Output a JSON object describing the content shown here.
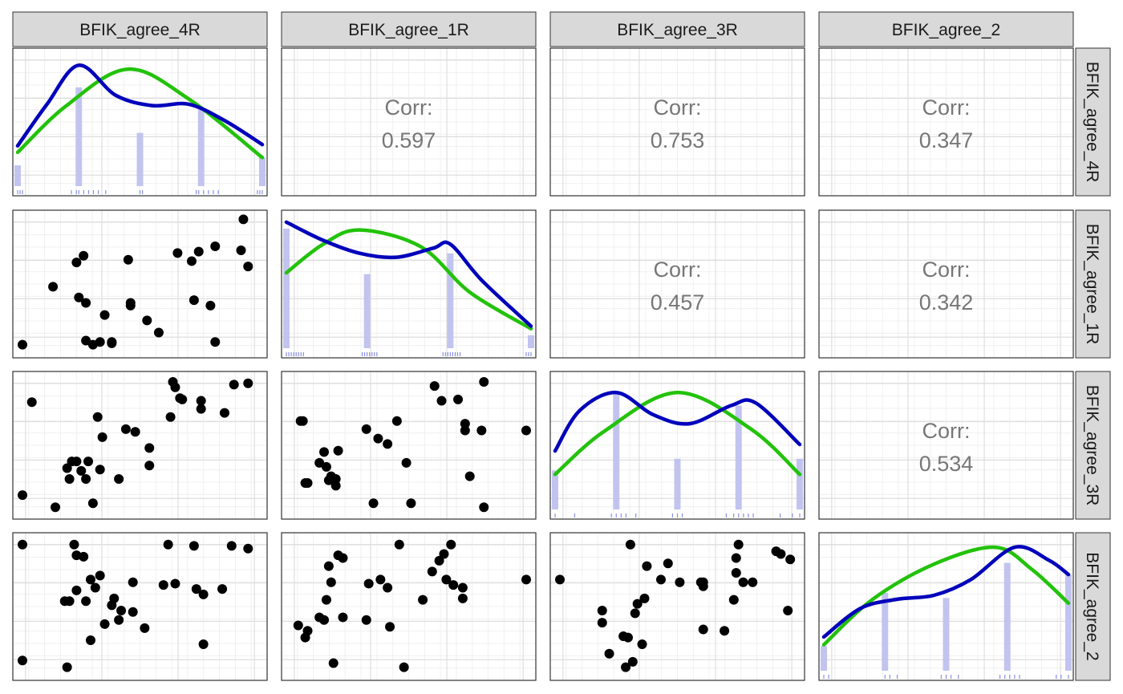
{
  "variables": [
    "BFIK_agree_4R",
    "BFIK_agree_1R",
    "BFIK_agree_3R",
    "BFIK_agree_2"
  ],
  "corr_label": "Corr:",
  "colors": {
    "histogram": "#bfc1ee",
    "density_observed": "#0000bb",
    "density_normal": "#22c20a",
    "rug": "#6f74e0",
    "points": "#000000",
    "strip_fill": "#d9d9d9",
    "corr_text": "#777777"
  },
  "chart_data": {
    "type": "scatterplot_matrix",
    "correlations": [
      {
        "row": "BFIK_agree_4R",
        "col": "BFIK_agree_1R",
        "value": "0.597"
      },
      {
        "row": "BFIK_agree_4R",
        "col": "BFIK_agree_3R",
        "value": "0.753"
      },
      {
        "row": "BFIK_agree_4R",
        "col": "BFIK_agree_2",
        "value": "0.347"
      },
      {
        "row": "BFIK_agree_1R",
        "col": "BFIK_agree_3R",
        "value": "0.457"
      },
      {
        "row": "BFIK_agree_1R",
        "col": "BFIK_agree_2",
        "value": "0.342"
      },
      {
        "row": "BFIK_agree_3R",
        "col": "BFIK_agree_2",
        "value": "0.534"
      }
    ],
    "diagonals": [
      {
        "var": "BFIK_agree_4R",
        "bars": [
          [
            0.0,
            0.16
          ],
          [
            0.25,
            0.76
          ],
          [
            0.5,
            0.41
          ],
          [
            0.75,
            0.59
          ],
          [
            1.0,
            0.22
          ]
        ],
        "density": [
          [
            0.0,
            0.31
          ],
          [
            0.12,
            0.63
          ],
          [
            0.25,
            0.93
          ],
          [
            0.4,
            0.7
          ],
          [
            0.55,
            0.62
          ],
          [
            0.7,
            0.63
          ],
          [
            0.85,
            0.5
          ],
          [
            1.0,
            0.32
          ]
        ],
        "normal": [
          [
            0.0,
            0.26
          ],
          [
            0.2,
            0.62
          ],
          [
            0.45,
            0.9
          ],
          [
            0.7,
            0.67
          ],
          [
            1.0,
            0.22
          ]
        ],
        "rug": [
          0.0,
          0.01,
          0.02,
          0.22,
          0.24,
          0.25,
          0.27,
          0.29,
          0.31,
          0.33,
          0.36,
          0.5,
          0.51,
          0.73,
          0.74,
          0.76,
          0.78,
          0.8,
          0.82,
          0.98,
          0.99,
          1.0
        ]
      },
      {
        "var": "BFIK_agree_1R",
        "bars": [
          [
            0.0,
            0.92
          ],
          [
            0.33,
            0.57
          ],
          [
            0.67,
            0.73
          ],
          [
            1.0,
            0.1
          ]
        ],
        "density": [
          [
            0.0,
            0.97
          ],
          [
            0.15,
            0.83
          ],
          [
            0.3,
            0.73
          ],
          [
            0.45,
            0.7
          ],
          [
            0.6,
            0.77
          ],
          [
            0.67,
            0.8
          ],
          [
            0.8,
            0.52
          ],
          [
            1.0,
            0.17
          ]
        ],
        "normal": [
          [
            0.0,
            0.58
          ],
          [
            0.15,
            0.8
          ],
          [
            0.3,
            0.91
          ],
          [
            0.55,
            0.78
          ],
          [
            0.75,
            0.43
          ],
          [
            1.0,
            0.15
          ]
        ],
        "rug": [
          0.0,
          0.01,
          0.02,
          0.03,
          0.04,
          0.05,
          0.06,
          0.07,
          0.31,
          0.32,
          0.33,
          0.34,
          0.35,
          0.36,
          0.37,
          0.64,
          0.65,
          0.66,
          0.67,
          0.68,
          0.69,
          0.7,
          0.71,
          0.98,
          0.99,
          1.0
        ]
      },
      {
        "var": "BFIK_agree_3R",
        "bars": [
          [
            0.0,
            0.3
          ],
          [
            0.25,
            0.91
          ],
          [
            0.5,
            0.39
          ],
          [
            0.75,
            0.8
          ],
          [
            1.0,
            0.39
          ]
        ],
        "density": [
          [
            0.0,
            0.45
          ],
          [
            0.1,
            0.76
          ],
          [
            0.25,
            0.9
          ],
          [
            0.4,
            0.73
          ],
          [
            0.55,
            0.66
          ],
          [
            0.72,
            0.8
          ],
          [
            0.82,
            0.82
          ],
          [
            1.0,
            0.5
          ]
        ],
        "normal": [
          [
            0.0,
            0.27
          ],
          [
            0.2,
            0.6
          ],
          [
            0.5,
            0.9
          ],
          [
            0.8,
            0.62
          ],
          [
            1.0,
            0.27
          ]
        ],
        "rug": [
          0.0,
          0.08,
          0.23,
          0.25,
          0.27,
          0.29,
          0.33,
          0.48,
          0.5,
          0.52,
          0.7,
          0.73,
          0.75,
          0.77,
          0.79,
          0.81,
          0.92,
          0.97,
          1.0
        ]
      },
      {
        "var": "BFIK_agree_2",
        "bars": [
          [
            0.0,
            0.19
          ],
          [
            0.25,
            0.6
          ],
          [
            0.5,
            0.56
          ],
          [
            0.75,
            0.83
          ],
          [
            1.0,
            0.74
          ]
        ],
        "density": [
          [
            0.0,
            0.26
          ],
          [
            0.15,
            0.48
          ],
          [
            0.3,
            0.55
          ],
          [
            0.45,
            0.58
          ],
          [
            0.6,
            0.7
          ],
          [
            0.78,
            0.95
          ],
          [
            0.92,
            0.85
          ],
          [
            1.0,
            0.74
          ]
        ],
        "normal": [
          [
            0.0,
            0.2
          ],
          [
            0.2,
            0.55
          ],
          [
            0.45,
            0.82
          ],
          [
            0.7,
            0.95
          ],
          [
            0.85,
            0.78
          ],
          [
            1.0,
            0.52
          ]
        ],
        "rug": [
          0.0,
          0.02,
          0.25,
          0.27,
          0.3,
          0.48,
          0.5,
          0.52,
          0.55,
          0.72,
          0.74,
          0.76,
          0.78,
          0.8,
          0.95,
          0.97,
          1.0
        ]
      }
    ],
    "scatter": [
      {
        "row": "BFIK_agree_1R",
        "col": "BFIK_agree_4R",
        "points": [
          [
            0.0,
            0.05
          ],
          [
            0.13,
            0.48
          ],
          [
            0.23,
            0.66
          ],
          [
            0.26,
            0.71
          ],
          [
            0.24,
            0.4
          ],
          [
            0.27,
            0.36
          ],
          [
            0.35,
            0.27
          ],
          [
            0.27,
            0.08
          ],
          [
            0.3,
            0.05
          ],
          [
            0.33,
            0.07
          ],
          [
            0.38,
            0.06
          ],
          [
            0.38,
            0.07
          ],
          [
            0.45,
            0.68
          ],
          [
            0.46,
            0.36
          ],
          [
            0.46,
            0.34
          ],
          [
            0.53,
            0.23
          ],
          [
            0.58,
            0.14
          ],
          [
            0.66,
            0.73
          ],
          [
            0.72,
            0.67
          ],
          [
            0.73,
            0.38
          ],
          [
            0.75,
            0.74
          ],
          [
            0.8,
            0.34
          ],
          [
            0.82,
            0.78
          ],
          [
            0.82,
            0.07
          ],
          [
            0.94,
            0.98
          ],
          [
            0.93,
            0.75
          ],
          [
            0.96,
            0.63
          ]
        ]
      },
      {
        "row": "BFIK_agree_3R",
        "col": "BFIK_agree_4R",
        "points": [
          [
            0.0,
            0.13
          ],
          [
            0.04,
            0.82
          ],
          [
            0.19,
            0.33
          ],
          [
            0.2,
            0.25
          ],
          [
            0.21,
            0.38
          ],
          [
            0.23,
            0.38
          ],
          [
            0.25,
            0.31
          ],
          [
            0.27,
            0.25
          ],
          [
            0.28,
            0.38
          ],
          [
            0.3,
            0.07
          ],
          [
            0.32,
            0.71
          ],
          [
            0.34,
            0.56
          ],
          [
            0.33,
            0.32
          ],
          [
            0.41,
            0.25
          ],
          [
            0.44,
            0.62
          ],
          [
            0.48,
            0.6
          ],
          [
            0.54,
            0.48
          ],
          [
            0.54,
            0.35
          ],
          [
            0.63,
            0.71
          ],
          [
            0.64,
            0.97
          ],
          [
            0.65,
            0.93
          ],
          [
            0.67,
            0.85
          ],
          [
            0.68,
            0.84
          ],
          [
            0.76,
            0.83
          ],
          [
            0.76,
            0.77
          ],
          [
            0.86,
            0.74
          ],
          [
            0.9,
            0.95
          ],
          [
            0.96,
            0.96
          ],
          [
            0.14,
            0.04
          ]
        ]
      },
      {
        "row": "BFIK_agree_3R",
        "col": "BFIK_agree_1R",
        "points": [
          [
            0.05,
            0.68
          ],
          [
            0.04,
            0.68
          ],
          [
            0.14,
            0.45
          ],
          [
            0.12,
            0.37
          ],
          [
            0.15,
            0.34
          ],
          [
            0.17,
            0.27
          ],
          [
            0.2,
            0.46
          ],
          [
            0.19,
            0.25
          ],
          [
            0.19,
            0.2
          ],
          [
            0.16,
            0.24
          ],
          [
            0.07,
            0.22
          ],
          [
            0.06,
            0.22
          ],
          [
            0.32,
            0.62
          ],
          [
            0.37,
            0.55
          ],
          [
            0.41,
            0.51
          ],
          [
            0.45,
            0.68
          ],
          [
            0.49,
            0.37
          ],
          [
            0.35,
            0.07
          ],
          [
            0.51,
            0.07
          ],
          [
            0.61,
            0.94
          ],
          [
            0.64,
            0.83
          ],
          [
            0.71,
            0.84
          ],
          [
            0.74,
            0.66
          ],
          [
            0.74,
            0.61
          ],
          [
            0.76,
            0.27
          ],
          [
            0.81,
            0.61
          ],
          [
            0.82,
            0.04
          ],
          [
            0.82,
            0.97
          ],
          [
            1.0,
            0.61
          ]
        ]
      },
      {
        "row": "BFIK_agree_2",
        "col": "BFIK_agree_4R",
        "points": [
          [
            0.0,
            0.96
          ],
          [
            0.0,
            0.1
          ],
          [
            0.22,
            0.96
          ],
          [
            0.26,
            0.87
          ],
          [
            0.29,
            0.7
          ],
          [
            0.31,
            0.64
          ],
          [
            0.33,
            0.73
          ],
          [
            0.39,
            0.56
          ],
          [
            0.38,
            0.51
          ],
          [
            0.42,
            0.47
          ],
          [
            0.41,
            0.4
          ],
          [
            0.35,
            0.37
          ],
          [
            0.29,
            0.25
          ],
          [
            0.2,
            0.54
          ],
          [
            0.18,
            0.54
          ],
          [
            0.23,
            0.62
          ],
          [
            0.27,
            0.54
          ],
          [
            0.47,
            0.68
          ],
          [
            0.47,
            0.46
          ],
          [
            0.52,
            0.34
          ],
          [
            0.6,
            0.66
          ],
          [
            0.62,
            0.96
          ],
          [
            0.65,
            0.67
          ],
          [
            0.73,
            0.95
          ],
          [
            0.74,
            0.63
          ],
          [
            0.77,
            0.59
          ],
          [
            0.77,
            0.22
          ],
          [
            0.85,
            0.63
          ],
          [
            0.89,
            0.95
          ],
          [
            0.96,
            0.93
          ],
          [
            0.19,
            0.05
          ],
          [
            0.23,
            0.88
          ]
        ]
      },
      {
        "row": "BFIK_agree_2",
        "col": "BFIK_agree_1R",
        "points": [
          [
            0.03,
            0.36
          ],
          [
            0.06,
            0.27
          ],
          [
            0.07,
            0.32
          ],
          [
            0.12,
            0.42
          ],
          [
            0.15,
            0.55
          ],
          [
            0.17,
            0.68
          ],
          [
            0.16,
            0.8
          ],
          [
            0.2,
            0.88
          ],
          [
            0.22,
            0.86
          ],
          [
            0.14,
            0.4
          ],
          [
            0.18,
            0.08
          ],
          [
            0.22,
            0.42
          ],
          [
            0.32,
            0.4
          ],
          [
            0.33,
            0.67
          ],
          [
            0.38,
            0.7
          ],
          [
            0.41,
            0.64
          ],
          [
            0.42,
            0.35
          ],
          [
            0.46,
            0.96
          ],
          [
            0.48,
            0.05
          ],
          [
            0.56,
            0.55
          ],
          [
            0.6,
            0.76
          ],
          [
            0.63,
            0.84
          ],
          [
            0.65,
            0.89
          ],
          [
            0.66,
            0.7
          ],
          [
            0.68,
            0.96
          ],
          [
            0.69,
            0.66
          ],
          [
            0.73,
            0.64
          ],
          [
            0.73,
            0.56
          ],
          [
            1.0,
            0.7
          ]
        ]
      },
      {
        "row": "BFIK_agree_2",
        "col": "BFIK_agree_3R",
        "points": [
          [
            0.0,
            0.7
          ],
          [
            0.18,
            0.47
          ],
          [
            0.18,
            0.38
          ],
          [
            0.21,
            0.15
          ],
          [
            0.27,
            0.28
          ],
          [
            0.29,
            0.27
          ],
          [
            0.28,
            0.05
          ],
          [
            0.31,
            0.09
          ],
          [
            0.32,
            0.45
          ],
          [
            0.33,
            0.52
          ],
          [
            0.36,
            0.56
          ],
          [
            0.37,
            0.8
          ],
          [
            0.3,
            0.96
          ],
          [
            0.35,
            0.22
          ],
          [
            0.43,
            0.7
          ],
          [
            0.46,
            0.82
          ],
          [
            0.51,
            0.68
          ],
          [
            0.6,
            0.68
          ],
          [
            0.61,
            0.68
          ],
          [
            0.61,
            0.65
          ],
          [
            0.61,
            0.33
          ],
          [
            0.7,
            0.32
          ],
          [
            0.76,
            0.96
          ],
          [
            0.75,
            0.86
          ],
          [
            0.75,
            0.75
          ],
          [
            0.78,
            0.68
          ],
          [
            0.82,
            0.68
          ],
          [
            0.94,
            0.89
          ],
          [
            0.92,
            0.91
          ],
          [
            0.98,
            0.85
          ],
          [
            0.97,
            0.47
          ],
          [
            0.74,
            0.55
          ]
        ]
      }
    ]
  }
}
